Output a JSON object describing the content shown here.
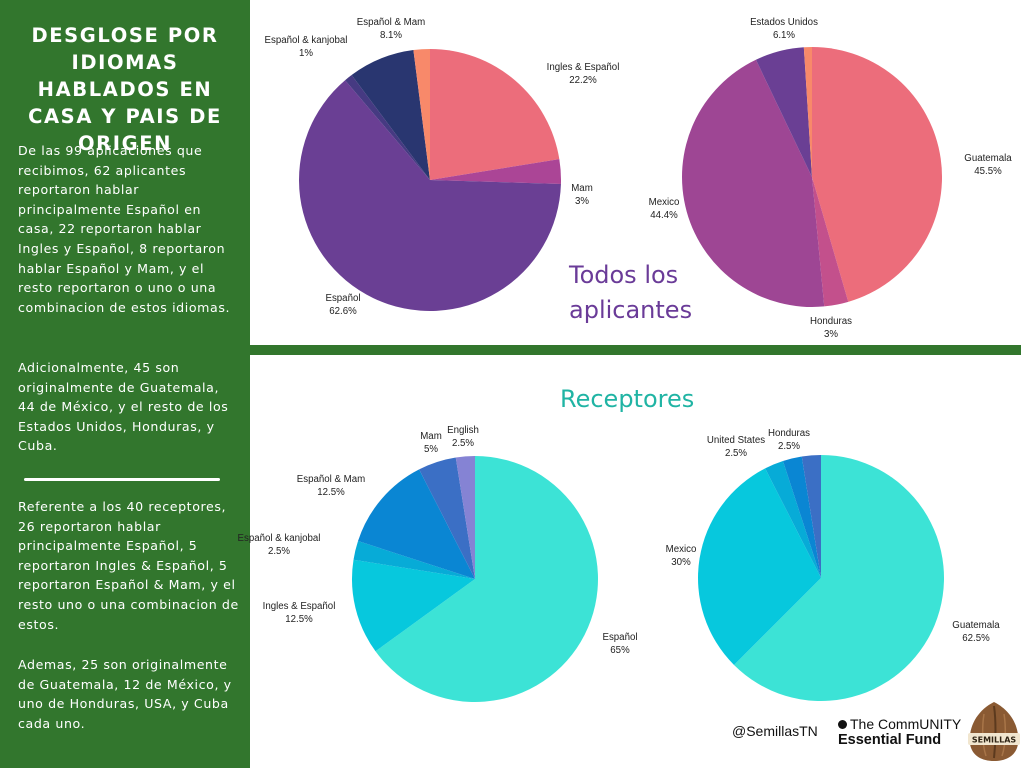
{
  "sidebar": {
    "title": "DESGLOSE POR IDIOMAS HABLADOS EN CASA Y PAIS DE ORIGEN",
    "paragraph1": "De las 99 aplicaciones que recibimos, 62 aplicantes reportaron hablar principalmente Español en casa, 22 reportaron hablar Ingles y Español, 8 reportaron hablar Español y Mam, y el resto reportaron o uno o una combinacion de estos idiomas.",
    "paragraph2": "Adicionalmente, 45 son originalmente de Guatemala, 44 de México, y el resto de los Estados Unidos, Honduras, y Cuba.",
    "paragraph3": "Referente a los 40 receptores, 26 reportaron hablar principalmente Español, 5 reportaron Ingles & Español, 5 reportaron Español & Mam, y el resto uno o una combinacion de estos.",
    "paragraph4": "Ademas, 25 son originalmente de Guatemala, 12 de México, y uno de Honduras, USA, y Cuba cada uno."
  },
  "section_titles": {
    "all_applicants": "Todos los aplicantes",
    "recipients": "Receptores"
  },
  "footer": {
    "handle": "@SemillasTN",
    "fund_line1": "The CommUNITY",
    "fund_line2": "Essential Fund",
    "logo_text": "SEMILLAS"
  },
  "chart_data": [
    {
      "type": "pie",
      "title": "Todos los aplicantes - idiomas",
      "slices": [
        {
          "label": "Ingles & Español",
          "value": 22.2,
          "pct": "22.2%",
          "color": "#ec6d7b"
        },
        {
          "label": "Mam",
          "value": 3,
          "pct": "3%",
          "color": "#ab4596"
        },
        {
          "label": "Español",
          "value": 62.6,
          "pct": "62.6%",
          "color": "#6a3f94"
        },
        {
          "label": "Español & kanjobal",
          "value": 1,
          "pct": "1%",
          "color": "#463a82"
        },
        {
          "label": "Español & Mam",
          "value": 8.1,
          "pct": "8.1%",
          "color": "#293670"
        },
        {
          "label": "",
          "value": 2,
          "pct": "",
          "color": "#f8896a"
        }
      ]
    },
    {
      "type": "pie",
      "title": "Todos los aplicantes - pais de origen",
      "slices": [
        {
          "label": "Guatemala",
          "value": 45.5,
          "pct": "45.5%",
          "color": "#ec6d7b"
        },
        {
          "label": "Honduras",
          "value": 3,
          "pct": "3%",
          "color": "#c3508c"
        },
        {
          "label": "Mexico",
          "value": 44.4,
          "pct": "44.4%",
          "color": "#9e4694"
        },
        {
          "label": "Estados Unidos",
          "value": 6.1,
          "pct": "6.1%",
          "color": "#6a3f94"
        },
        {
          "label": "",
          "value": 1,
          "pct": "",
          "color": "#f8896a"
        }
      ]
    },
    {
      "type": "pie",
      "title": "Receptores - idiomas",
      "slices": [
        {
          "label": "Español",
          "value": 65,
          "pct": "65%",
          "color": "#3ce3d6"
        },
        {
          "label": "Ingles & Español",
          "value": 12.5,
          "pct": "12.5%",
          "color": "#07c8dd"
        },
        {
          "label": "Español & kanjobal",
          "value": 2.5,
          "pct": "2.5%",
          "color": "#07abd7"
        },
        {
          "label": "Español & Mam",
          "value": 12.5,
          "pct": "12.5%",
          "color": "#0a86d3"
        },
        {
          "label": "Mam",
          "value": 5,
          "pct": "5%",
          "color": "#3b6fc5"
        },
        {
          "label": "English",
          "value": 2.5,
          "pct": "2.5%",
          "color": "#8583d4"
        }
      ]
    },
    {
      "type": "pie",
      "title": "Receptores - pais de origen",
      "slices": [
        {
          "label": "Guatemala",
          "value": 62.5,
          "pct": "62.5%",
          "color": "#3ce3d6"
        },
        {
          "label": "Mexico",
          "value": 30,
          "pct": "30%",
          "color": "#07c8dd"
        },
        {
          "label": "",
          "value": 2.5,
          "pct": "",
          "color": "#07abd7"
        },
        {
          "label": "United States",
          "value": 2.5,
          "pct": "2.5%",
          "color": "#0a86d3"
        },
        {
          "label": "Honduras",
          "value": 2.5,
          "pct": "2.5%",
          "color": "#3b6fc5"
        }
      ]
    }
  ]
}
